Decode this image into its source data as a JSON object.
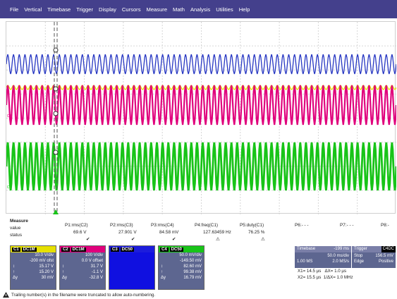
{
  "menu": [
    "File",
    "Vertical",
    "Timebase",
    "Trigger",
    "Display",
    "Cursors",
    "Measure",
    "Math",
    "Analysis",
    "Utilities",
    "Help"
  ],
  "colors": {
    "c1": "#e6e000",
    "c2": "#e0007c",
    "c3": "#2636c2",
    "c4": "#18c418",
    "menubar": "#44408c"
  },
  "grid_markers": {
    "c3": "C3",
    "c4": "C4"
  },
  "measure": {
    "title": "Measure",
    "row_labels": [
      "value",
      "status"
    ],
    "params": [
      {
        "name": "P1:rms(C2)",
        "value": "69.6 V",
        "status": "✔"
      },
      {
        "name": "P2:rms(C3)",
        "value": "27.901 V",
        "status": "✔"
      },
      {
        "name": "P3:rms(C4)",
        "value": "84.58 mV",
        "status": "✔"
      },
      {
        "name": "P4:freq(C1)",
        "value": "127.63459 Hz",
        "status": "⚠"
      },
      {
        "name": "P5:duty(C1)",
        "value": "76.25 %",
        "status": "⚠"
      },
      {
        "name": "P6:- - -",
        "value": "",
        "status": ""
      },
      {
        "name": "P7:- - -",
        "value": "",
        "status": ""
      },
      {
        "name": "P8:-",
        "value": "",
        "status": ""
      }
    ]
  },
  "channels": [
    {
      "tag": "C1",
      "hdr": "DC1M",
      "color": "#e6e000",
      "tagtext": "#000",
      "vdiv": "10.0 V/div",
      "offset": "-200 mV ofst",
      "r1": "15.17 V",
      "r2": "15.20 V",
      "dy": "30 mV"
    },
    {
      "tag": "C2",
      "hdr": "DC1M",
      "color": "#e0007c",
      "tagtext": "#fff",
      "vdiv": "100 V/div",
      "offset": "0.0 V offset",
      "r1": "31.7 V",
      "r2": "-1.1 V",
      "dy": "-32.8 V"
    },
    {
      "tag": "C3",
      "hdr": "DC50",
      "color": "#1c1cdc",
      "tagtext": "#fff",
      "vdiv": "",
      "offset": "",
      "r1": "",
      "r2": "",
      "dy": ""
    },
    {
      "tag": "C4",
      "hdr": "DC50",
      "color": "#18c418",
      "tagtext": "#000",
      "vdiv": "50.0 mV/div",
      "offset": "-149.50 mV",
      "r1": "82.60 mV",
      "r2": "99.38 mV",
      "dy": "16.79 mV"
    }
  ],
  "timebase": {
    "label": "Timebase",
    "value": "-199 ms",
    "rate": "50.0 ms/div",
    "samples": "1.00 MS",
    "srate": "2.0 MS/s"
  },
  "trigger": {
    "label": "Trigger",
    "tag": "C4DC",
    "mode": "Stop",
    "level": "156.5 mV",
    "type": "Edge",
    "slope": "Positive"
  },
  "cursors": {
    "x1": "X1= 14.5 µs",
    "dx": "ΔX=   1.0 µs",
    "x2": "X2= 15.5 µs",
    "idx": "1/ΔX= 1.0 MHz"
  },
  "note": "Trailing number(s) in the filename were truncated to allow auto-numbering."
}
